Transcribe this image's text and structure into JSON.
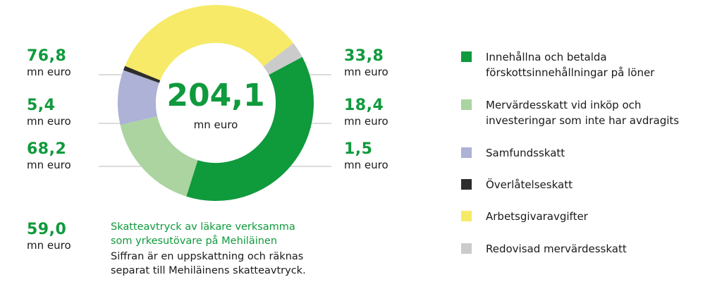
{
  "chart_data": {
    "type": "pie",
    "total": "204,1",
    "total_unit": "mn euro",
    "unit": "mn euro",
    "slices": [
      {
        "label": "Innehållna och betalda\nförskottsinnehållningar på löner",
        "value": 76.8,
        "value_label": "76,8",
        "color": "#0f9a3c",
        "side": "left"
      },
      {
        "label": "Mervärdesskatt vid inköp och\ninvesteringar som inte har avdragits",
        "value": 33.8,
        "value_label": "33,8",
        "color": "#abd4a0",
        "side": "right"
      },
      {
        "label": "Samfundsskatt",
        "value": 18.4,
        "value_label": "18,4",
        "color": "#adb2d6",
        "side": "right"
      },
      {
        "label": "Överlåtelseskatt",
        "value": 1.5,
        "value_label": "1,5",
        "color": "#2d2d2d",
        "side": "right"
      },
      {
        "label": "Arbetsgivaravgifter",
        "value": 68.2,
        "value_label": "68,2",
        "color": "#f6ea68",
        "side": "left"
      },
      {
        "label": "Redovisad mervärdesskatt",
        "value": 5.4,
        "value_label": "5,4",
        "color": "#cbcbcb",
        "side": "left"
      }
    ]
  },
  "note": {
    "value": "59,0",
    "unit": "mn euro",
    "title": "Skatteavtryck av läkare verksamma\nsom yrkesutövare på Mehiläinen",
    "body": "Siffran är en uppskattning och räknas\nseparat till Mehiläinens skatteavtryck."
  }
}
